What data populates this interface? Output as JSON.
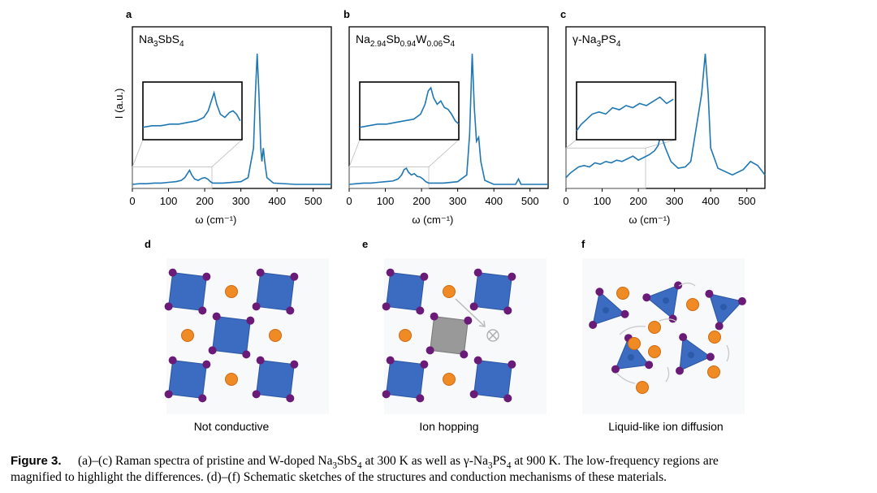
{
  "chart_data": [
    {
      "type": "line",
      "panel": "a",
      "label": [
        "Na",
        "3",
        "SbS",
        "4"
      ],
      "xlabel": "ω (cm⁻¹)",
      "ylabel": "I (a.u.)",
      "color": "#1f77b4",
      "x": [
        0,
        20,
        40,
        60,
        80,
        100,
        120,
        135,
        145,
        152,
        158,
        164,
        172,
        182,
        192,
        200,
        208,
        216,
        222,
        250,
        300,
        320,
        335,
        340,
        345,
        350,
        355,
        358,
        362,
        366,
        372,
        390,
        450,
        500,
        550
      ],
      "values": [
        0.03,
        0.035,
        0.035,
        0.04,
        0.04,
        0.045,
        0.05,
        0.06,
        0.08,
        0.11,
        0.135,
        0.1,
        0.07,
        0.06,
        0.075,
        0.08,
        0.07,
        0.05,
        0.04,
        0.04,
        0.05,
        0.08,
        0.3,
        0.7,
        1.0,
        0.7,
        0.3,
        0.2,
        0.3,
        0.2,
        0.08,
        0.04,
        0.03,
        0.03,
        0.03
      ],
      "xlim": [
        0,
        550
      ],
      "xticks": [
        0,
        100,
        200,
        300,
        400,
        500
      ],
      "ylim": [
        0,
        1.2
      ],
      "inset": {
        "xlim": [
          0,
          220
        ],
        "ylim": [
          0,
          0.16
        ]
      }
    },
    {
      "type": "line",
      "panel": "b",
      "label": [
        "Na",
        "2.94",
        "Sb",
        "0.94",
        "W",
        "0.06",
        "S",
        "4"
      ],
      "xlabel": "ω (cm⁻¹)",
      "color": "#1f77b4",
      "x": [
        0,
        20,
        40,
        60,
        80,
        100,
        120,
        135,
        145,
        152,
        158,
        164,
        172,
        180,
        188,
        196,
        204,
        212,
        220,
        260,
        300,
        325,
        333,
        340,
        346,
        352,
        358,
        364,
        375,
        400,
        460,
        468,
        475,
        550
      ],
      "values": [
        0.03,
        0.035,
        0.04,
        0.04,
        0.045,
        0.05,
        0.055,
        0.07,
        0.1,
        0.14,
        0.15,
        0.12,
        0.1,
        0.11,
        0.09,
        0.085,
        0.07,
        0.05,
        0.04,
        0.04,
        0.05,
        0.1,
        0.4,
        1.0,
        0.6,
        0.35,
        0.38,
        0.2,
        0.06,
        0.03,
        0.03,
        0.07,
        0.03,
        0.03
      ],
      "xlim": [
        0,
        550
      ],
      "xticks": [
        0,
        100,
        200,
        300,
        400,
        500
      ],
      "ylim": [
        0,
        1.2
      ],
      "inset": {
        "xlim": [
          0,
          220
        ],
        "ylim": [
          0,
          0.16
        ]
      }
    },
    {
      "type": "line",
      "panel": "c",
      "label": [
        "γ-Na",
        "3",
        "PS",
        "4"
      ],
      "xlabel": "ω (cm⁻¹)",
      "color": "#1f77b4",
      "x": [
        0,
        10,
        20,
        35,
        50,
        65,
        80,
        95,
        110,
        125,
        140,
        155,
        170,
        185,
        200,
        215,
        230,
        245,
        255,
        262,
        275,
        290,
        310,
        330,
        345,
        360,
        375,
        385,
        393,
        400,
        420,
        460,
        490,
        510,
        530,
        550
      ],
      "values": [
        0.08,
        0.11,
        0.13,
        0.16,
        0.17,
        0.16,
        0.19,
        0.18,
        0.2,
        0.19,
        0.21,
        0.2,
        0.22,
        0.24,
        0.21,
        0.23,
        0.25,
        0.28,
        0.32,
        0.4,
        0.3,
        0.2,
        0.15,
        0.16,
        0.2,
        0.45,
        0.7,
        1.0,
        0.7,
        0.3,
        0.15,
        0.1,
        0.14,
        0.2,
        0.17,
        0.1
      ],
      "xlim": [
        0,
        550
      ],
      "xticks": [
        0,
        100,
        200,
        300,
        400,
        500
      ],
      "ylim": [
        0,
        1.2
      ],
      "inset": {
        "xlim": [
          0,
          220
        ],
        "ylim": [
          0.05,
          0.3
        ]
      }
    }
  ],
  "schematics": [
    {
      "panel": "d",
      "caption": "Not conductive"
    },
    {
      "panel": "e",
      "caption": "Ion hopping"
    },
    {
      "panel": "f",
      "caption": "Liquid-like ion diffusion"
    }
  ],
  "caption": {
    "label": "Figure 3.",
    "lines": [
      [
        "(a)–(c) Raman spectra of pristine and W-doped Na",
        "3",
        "SbS",
        "4",
        " at 300 K as well as γ-Na",
        "3",
        "PS",
        "4",
        " at 900 K. The low-frequency regions are"
      ],
      [
        "magnified to highlight the differences. (d)–(f) Schematic sketches of the structures and conduction mechanisms of these materials."
      ]
    ]
  }
}
